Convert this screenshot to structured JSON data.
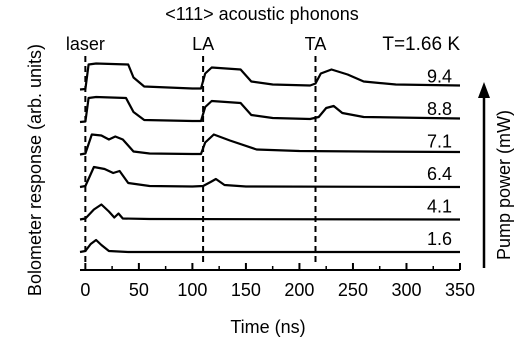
{
  "chart_data": {
    "type": "line",
    "title": "<111> acoustic phonons",
    "xlabel": "Time (ns)",
    "ylabel": "Bolometer response (arb. units)",
    "right_label": "Pump power (mW)",
    "temperature_label": "T=1.66 K",
    "xlim": [
      -5,
      350
    ],
    "xticks": [
      0,
      50,
      100,
      150,
      200,
      250,
      300,
      350
    ],
    "markers": [
      {
        "label": "laser",
        "x": 0
      },
      {
        "label": "LA",
        "x": 110
      },
      {
        "label": "TA",
        "x": 215
      }
    ],
    "series": [
      {
        "name": "9.4",
        "offset": 5,
        "points": [
          [
            -5,
            0
          ],
          [
            0,
            0.05
          ],
          [
            3,
            2.5
          ],
          [
            10,
            2.6
          ],
          [
            40,
            2.5
          ],
          [
            45,
            1.2
          ],
          [
            55,
            0.3
          ],
          [
            100,
            0.1
          ],
          [
            108,
            0.1
          ],
          [
            112,
            1.6
          ],
          [
            118,
            2.2
          ],
          [
            145,
            2.0
          ],
          [
            155,
            0.8
          ],
          [
            175,
            0.5
          ],
          [
            210,
            0.4
          ],
          [
            215,
            0.6
          ],
          [
            220,
            1.6
          ],
          [
            230,
            2.0
          ],
          [
            245,
            1.5
          ],
          [
            260,
            0.8
          ],
          [
            290,
            0.5
          ],
          [
            350,
            0.4
          ]
        ]
      },
      {
        "name": "8.8",
        "offset": 4,
        "points": [
          [
            -5,
            0
          ],
          [
            0,
            0.05
          ],
          [
            3,
            2.4
          ],
          [
            10,
            2.5
          ],
          [
            38,
            2.4
          ],
          [
            45,
            1.0
          ],
          [
            55,
            0.2
          ],
          [
            100,
            0.1
          ],
          [
            108,
            0.1
          ],
          [
            112,
            1.5
          ],
          [
            118,
            2.1
          ],
          [
            145,
            1.9
          ],
          [
            155,
            0.7
          ],
          [
            175,
            0.4
          ],
          [
            210,
            0.3
          ],
          [
            218,
            0.5
          ],
          [
            225,
            1.4
          ],
          [
            232,
            1.6
          ],
          [
            240,
            0.9
          ],
          [
            260,
            0.5
          ],
          [
            350,
            0.35
          ]
        ]
      },
      {
        "name": "7.1",
        "offset": 3,
        "points": [
          [
            -5,
            0
          ],
          [
            0,
            0.1
          ],
          [
            6,
            2.0
          ],
          [
            15,
            1.9
          ],
          [
            22,
            1.5
          ],
          [
            28,
            1.8
          ],
          [
            35,
            1.5
          ],
          [
            45,
            0.3
          ],
          [
            60,
            0.1
          ],
          [
            100,
            0.05
          ],
          [
            108,
            0.05
          ],
          [
            112,
            1.2
          ],
          [
            120,
            2.0
          ],
          [
            135,
            1.4
          ],
          [
            160,
            0.5
          ],
          [
            200,
            0.35
          ],
          [
            260,
            0.3
          ],
          [
            350,
            0.25
          ]
        ]
      },
      {
        "name": "6.4",
        "offset": 2,
        "points": [
          [
            -5,
            0
          ],
          [
            0,
            0.1
          ],
          [
            8,
            2.0
          ],
          [
            18,
            1.8
          ],
          [
            26,
            1.4
          ],
          [
            32,
            1.6
          ],
          [
            40,
            0.4
          ],
          [
            60,
            0.1
          ],
          [
            100,
            0.05
          ],
          [
            110,
            0.1
          ],
          [
            117,
            0.5
          ],
          [
            122,
            0.8
          ],
          [
            130,
            0.2
          ],
          [
            150,
            0.05
          ],
          [
            350,
            0.0
          ]
        ]
      },
      {
        "name": "4.1",
        "offset": 1,
        "points": [
          [
            -5,
            0
          ],
          [
            0,
            0.1
          ],
          [
            8,
            1.0
          ],
          [
            15,
            1.5
          ],
          [
            22,
            0.8
          ],
          [
            27,
            0.2
          ],
          [
            31,
            0.6
          ],
          [
            35,
            0.1
          ],
          [
            60,
            0.05
          ],
          [
            350,
            0.0
          ]
        ]
      },
      {
        "name": "1.6",
        "offset": 0,
        "points": [
          [
            -5,
            0
          ],
          [
            0,
            0.1
          ],
          [
            5,
            0.8
          ],
          [
            10,
            1.2
          ],
          [
            15,
            0.7
          ],
          [
            22,
            0.1
          ],
          [
            40,
            0.0
          ],
          [
            350,
            0.0
          ]
        ]
      }
    ]
  }
}
